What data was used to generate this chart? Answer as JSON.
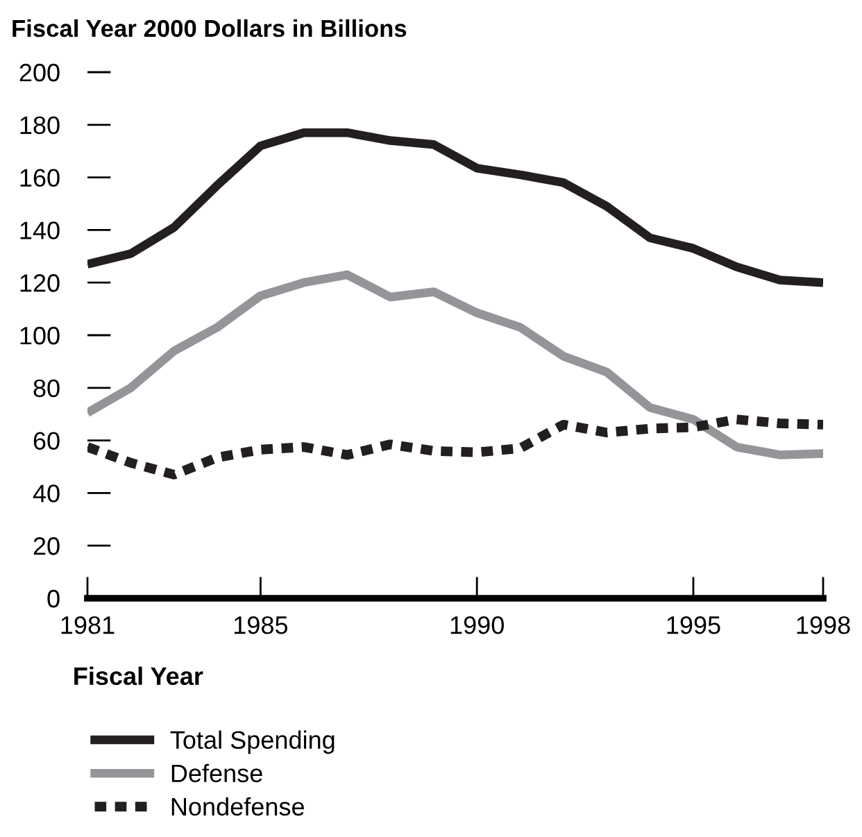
{
  "chart_data": {
    "type": "line",
    "title": "Fiscal Year 2000 Dollars in Billions",
    "xlabel": "Fiscal Year",
    "x": [
      1981,
      1982,
      1983,
      1984,
      1985,
      1986,
      1987,
      1988,
      1989,
      1990,
      1991,
      1992,
      1993,
      1994,
      1995,
      1996,
      1997,
      1998
    ],
    "series": [
      {
        "name": "Total Spending",
        "color": "#231f20",
        "line_style": "solid",
        "values": [
          127,
          131,
          141,
          157,
          172,
          177,
          177,
          174,
          172.5,
          163.5,
          161,
          158,
          149,
          137,
          133,
          126,
          121,
          120
        ]
      },
      {
        "name": "Defense",
        "color": "#939598",
        "line_style": "solid",
        "values": [
          70.5,
          80,
          94,
          103,
          115,
          120,
          123,
          114.5,
          116.5,
          108.5,
          103,
          92,
          86,
          72.5,
          68,
          57.5,
          54.5,
          55
        ]
      },
      {
        "name": "Nondefense",
        "color": "#231f20",
        "line_style": "dotted",
        "values": [
          57.5,
          51.5,
          47,
          53.5,
          56.5,
          57.5,
          54.5,
          58.5,
          56,
          55.5,
          57,
          66,
          63,
          64.5,
          65,
          68,
          66.5,
          66
        ]
      }
    ],
    "xlim": [
      1981,
      1998
    ],
    "xticks": [
      1981,
      1985,
      1990,
      1995,
      1998
    ],
    "ylim": [
      0,
      200
    ],
    "yticks": [
      0,
      20,
      40,
      60,
      80,
      100,
      120,
      140,
      160,
      180,
      200
    ],
    "grid": false,
    "legend": "bottom left",
    "marker": "none"
  }
}
